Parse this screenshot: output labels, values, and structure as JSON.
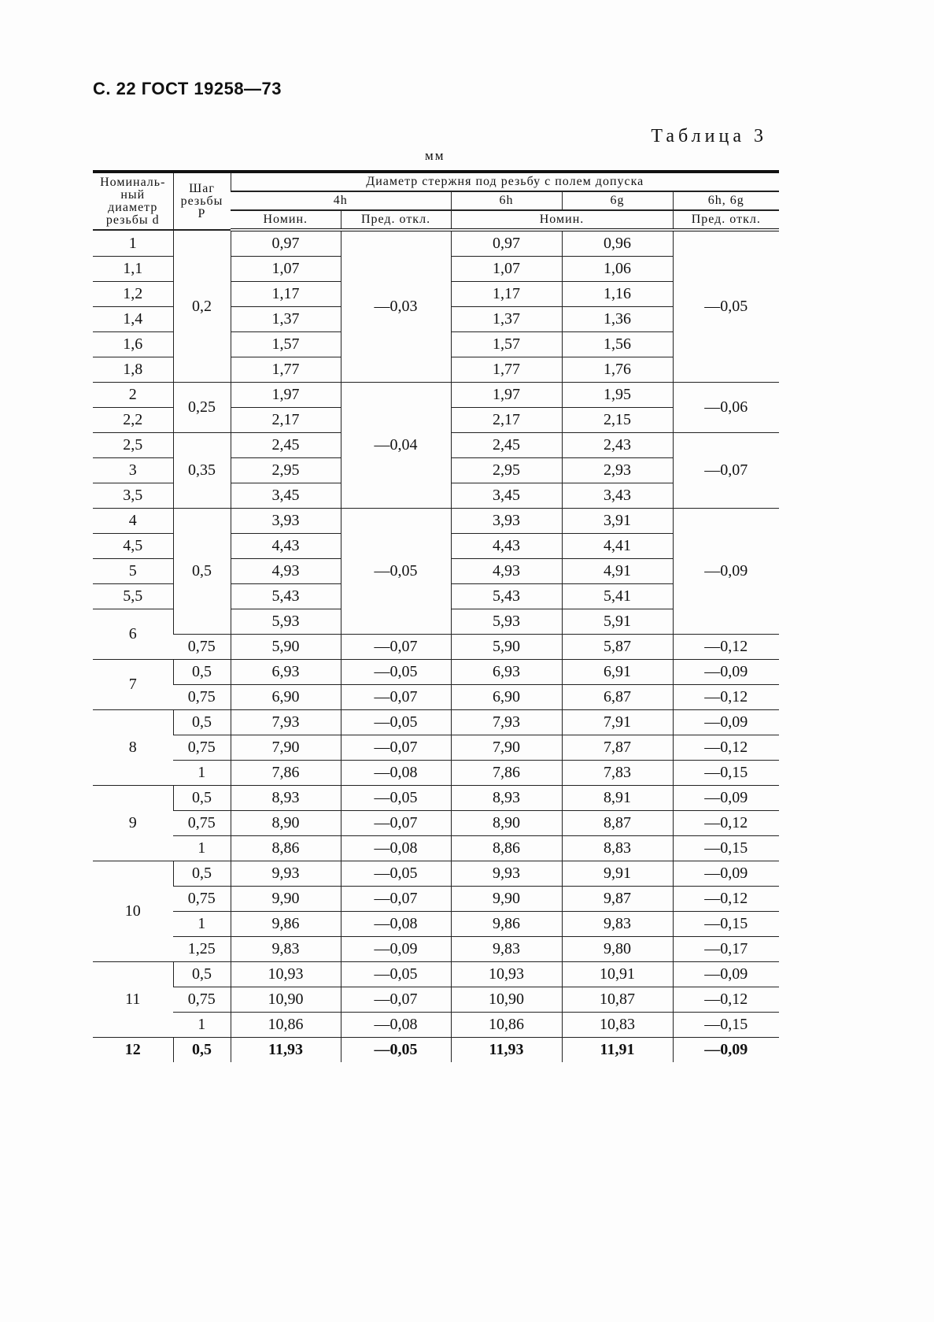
{
  "page_header": "С. 22 ГОСТ 19258—73",
  "table_number": "Таблица 3",
  "unit": "мм",
  "headers": {
    "nominal_diameter": "Номиналь-ный диаметр резьбы d",
    "pitch": "Шаг резьбы P",
    "group": "Диаметр стержня под резьбу с полем допуска",
    "f4h": "4h",
    "f6h": "6h",
    "f6g": "6g",
    "f6h6g": "6h, 6g",
    "nom": "Номин.",
    "dev": "Пред. откл.",
    "nom2": "Номин.",
    "dev2": "Пред. откл."
  },
  "columns": [
    "d",
    "P",
    "4h_nom",
    "4h_dev",
    "6h_nom",
    "6g_nom",
    "6h6g_dev"
  ],
  "rows": [
    [
      "1",
      "0,2",
      "0,97",
      "—0,03",
      "0,97",
      "0,96",
      "—0,05"
    ],
    [
      "1,1",
      null,
      "1,07",
      null,
      "1,07",
      "1,06",
      null
    ],
    [
      "1,2",
      null,
      "1,17",
      null,
      "1,17",
      "1,16",
      null
    ],
    [
      "1,4",
      null,
      "1,37",
      null,
      "1,37",
      "1,36",
      null
    ],
    [
      "1,6",
      null,
      "1,57",
      null,
      "1,57",
      "1,56",
      null
    ],
    [
      "1,8",
      null,
      "1,77",
      null,
      "1,77",
      "1,76",
      null
    ],
    [
      "2",
      "0,25",
      "1,97",
      "—0,04",
      "1,97",
      "1,95",
      "—0,06"
    ],
    [
      "2,2",
      null,
      "2,17",
      null,
      "2,17",
      "2,15",
      null
    ],
    [
      "2,5",
      "0,35",
      "2,45",
      null,
      "2,45",
      "2,43",
      "—0,07"
    ],
    [
      "3",
      null,
      "2,95",
      null,
      "2,95",
      "2,93",
      null
    ],
    [
      "3,5",
      null,
      "3,45",
      null,
      "3,45",
      "3,43",
      null
    ],
    [
      "4",
      "0,5",
      "3,93",
      "—0,05",
      "3,93",
      "3,91",
      "—0,09"
    ],
    [
      "4,5",
      null,
      "4,43",
      null,
      "4,43",
      "4,41",
      null
    ],
    [
      "5",
      null,
      "4,93",
      null,
      "4,93",
      "4,91",
      null
    ],
    [
      "5,5",
      null,
      "5,43",
      null,
      "5,43",
      "5,41",
      null
    ],
    [
      "6",
      null,
      "5,93",
      null,
      "5,93",
      "5,91",
      null
    ],
    [
      null,
      "0,75",
      "5,90",
      "—0,07",
      "5,90",
      "5,87",
      "—0,12"
    ],
    [
      "7",
      "0,5",
      "6,93",
      "—0,05",
      "6,93",
      "6,91",
      "—0,09"
    ],
    [
      null,
      "0,75",
      "6,90",
      "—0,07",
      "6,90",
      "6,87",
      "—0,12"
    ],
    [
      "8",
      "0,5",
      "7,93",
      "—0,05",
      "7,93",
      "7,91",
      "—0,09"
    ],
    [
      null,
      "0,75",
      "7,90",
      "—0,07",
      "7,90",
      "7,87",
      "—0,12"
    ],
    [
      null,
      "1",
      "7,86",
      "—0,08",
      "7,86",
      "7,83",
      "—0,15"
    ],
    [
      "9",
      "0,5",
      "8,93",
      "—0,05",
      "8,93",
      "8,91",
      "—0,09"
    ],
    [
      null,
      "0,75",
      "8,90",
      "—0,07",
      "8,90",
      "8,87",
      "—0,12"
    ],
    [
      null,
      "1",
      "8,86",
      "—0,08",
      "8,86",
      "8,83",
      "—0,15"
    ],
    [
      "10",
      "0,5",
      "9,93",
      "—0,05",
      "9,93",
      "9,91",
      "—0,09"
    ],
    [
      null,
      "0,75",
      "9,90",
      "—0,07",
      "9,90",
      "9,87",
      "—0,12"
    ],
    [
      null,
      "1",
      "9,86",
      "—0,08",
      "9,86",
      "9,83",
      "—0,15"
    ],
    [
      null,
      "1,25",
      "9,83",
      "—0,09",
      "9,83",
      "9,80",
      "—0,17"
    ],
    [
      "11",
      "0,5",
      "10,93",
      "—0,05",
      "10,93",
      "10,91",
      "—0,09"
    ],
    [
      null,
      "0,75",
      "10,90",
      "—0,07",
      "10,90",
      "10,87",
      "—0,12"
    ],
    [
      null,
      "1",
      "10,86",
      "—0,08",
      "10,86",
      "10,83",
      "—0,15"
    ],
    [
      "12",
      "0,5",
      "11,93",
      "—0,05",
      "11,93",
      "11,91",
      "—0,09"
    ]
  ]
}
